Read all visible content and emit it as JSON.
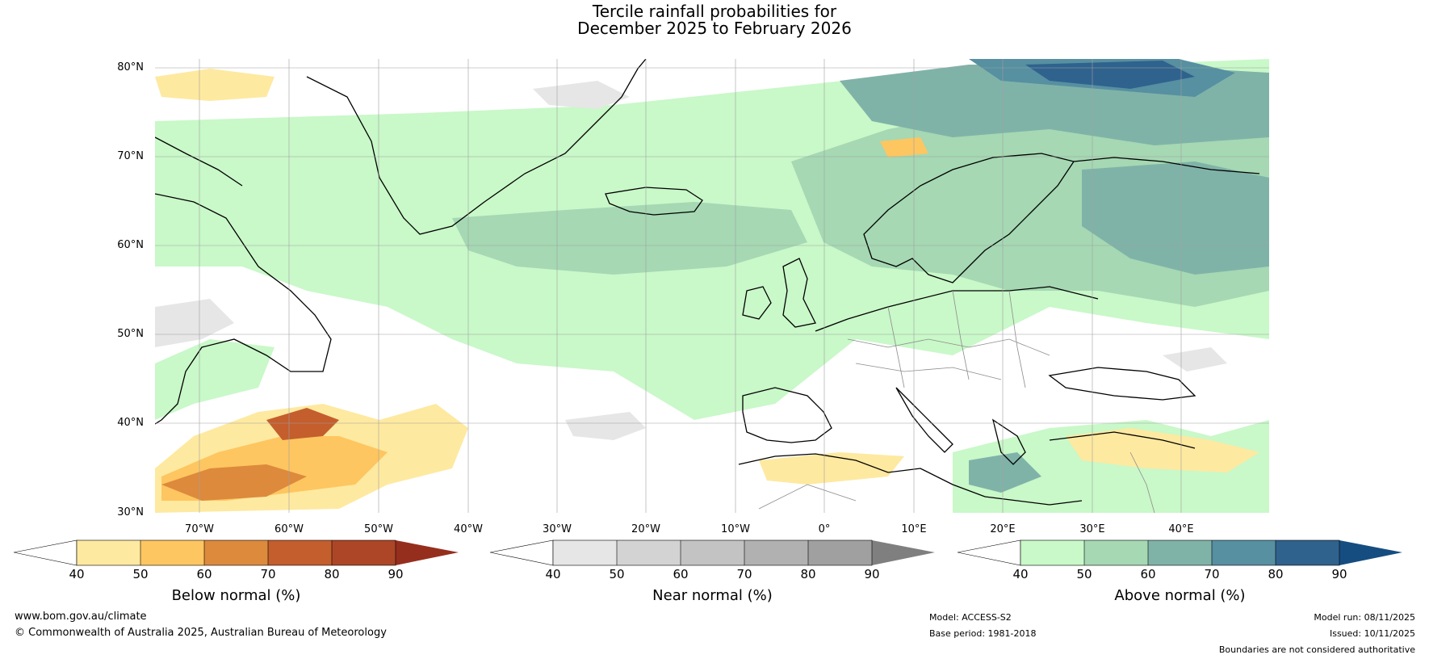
{
  "title_line1": "Tercile rainfall probabilities for",
  "title_line2": "December 2025 to February 2026",
  "lat_labels": [
    "80°N",
    "70°N",
    "60°N",
    "50°N",
    "40°N",
    "30°N"
  ],
  "lon_labels": [
    "70°W",
    "60°W",
    "50°W",
    "40°W",
    "30°W",
    "20°W",
    "10°W",
    "0°",
    "10°E",
    "20°E",
    "30°E",
    "40°E"
  ],
  "colorbars": {
    "below": {
      "title": "Below normal (%)",
      "ticks": [
        "40",
        "50",
        "60",
        "70",
        "80",
        "90"
      ],
      "colors": [
        "#fee9a0",
        "#fec660",
        "#dd8a3d",
        "#c45e2d",
        "#ad4626"
      ],
      "under": "#ffffff",
      "over": "#962e1e"
    },
    "near": {
      "title": "Near normal (%)",
      "ticks": [
        "40",
        "50",
        "60",
        "70",
        "80",
        "90"
      ],
      "colors": [
        "#e6e6e6",
        "#d3d3d3",
        "#c3c3c3",
        "#b1b1b1",
        "#a0a0a0"
      ],
      "under": "#ffffff",
      "over": "#7f7f7f"
    },
    "above": {
      "title": "Above normal (%)",
      "ticks": [
        "40",
        "50",
        "60",
        "70",
        "80",
        "90"
      ],
      "colors": [
        "#c9f8c9",
        "#a5d8b3",
        "#80b3a8",
        "#5690a1",
        "#30628e"
      ],
      "under": "#ffffff",
      "over": "#154d80"
    }
  },
  "footer": {
    "website": "www.bom.gov.au/climate",
    "copyright": "© Commonwealth of Australia 2025, Australian Bureau of Meteorology",
    "model": "Model: ACCESS-S2",
    "base_period": "Base period: 1981-2018",
    "model_run": "Model run: 08/11/2025",
    "issued": "Issued: 10/11/2025",
    "disclaimer": "Boundaries are not considered authoritative"
  }
}
